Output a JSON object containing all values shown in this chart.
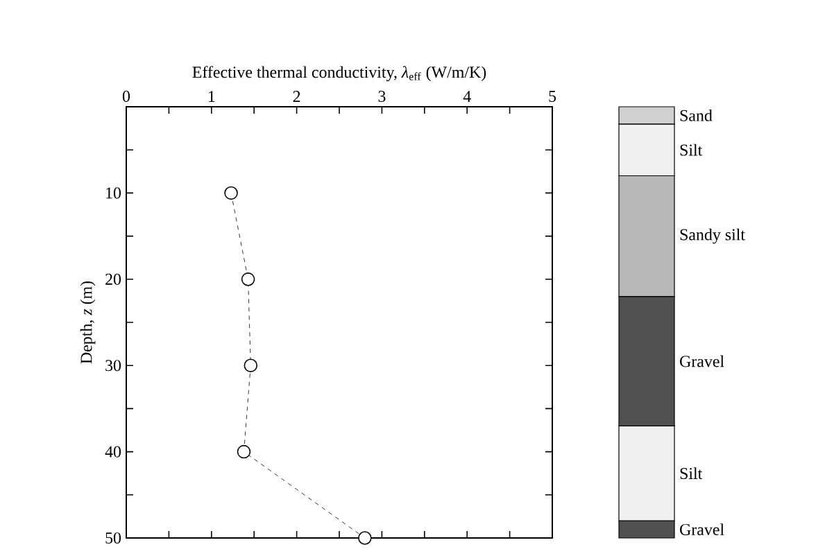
{
  "chart_data": [
    {
      "type": "line",
      "xlabel": "Effective thermal conductivity, *λ*$_{eff}$ (W/m/K)",
      "ylabel": "Depth, *z* (m)",
      "x": [
        1.23,
        1.43,
        1.46,
        1.38,
        2.8
      ],
      "series": [
        {
          "color": "#000000",
          "values": [
            10,
            20,
            30,
            40,
            50
          ]
        }
      ],
      "marker": "circle",
      "line_style": "dashed",
      "grid": false,
      "xlim": [
        0,
        5
      ],
      "ylim": [
        50,
        0
      ],
      "xticks": [
        0,
        {
          "value": 0.5,
          "label": null
        },
        1,
        {
          "value": 1.5,
          "label": null
        },
        2,
        {
          "value": 2.5,
          "label": null
        },
        3,
        {
          "value": 3.5,
          "label": null
        },
        4,
        {
          "value": 4.5,
          "label": null
        },
        5
      ],
      "yticks": [
        {
          "value": 5,
          "label": null
        },
        10,
        {
          "value": 15,
          "label": null
        },
        20,
        {
          "value": 25,
          "label": null
        },
        30,
        {
          "value": 35,
          "label": null
        },
        40,
        {
          "value": 45,
          "label": null
        },
        50
      ]
    },
    {
      "type": "bar",
      "stacked": true,
      "categories": [
        null
      ],
      "ylim": [
        50,
        0
      ],
      "tick_labels": false,
      "series": [
        {
          "name": "Sand",
          "color": "#d0d0d0",
          "values": [
            2
          ]
        },
        {
          "name": "Silt",
          "color": "#f0f0f0",
          "values": [
            6
          ]
        },
        {
          "name": "Sandy silt",
          "color": "#b8b8b8",
          "values": [
            14
          ]
        },
        {
          "name": "Gravel",
          "color": "#505050",
          "values": [
            15
          ]
        },
        {
          "name": "Silt",
          "color": "#f0f0f0",
          "values": [
            11
          ]
        },
        {
          "name": "Gravel",
          "color": "#505050",
          "values": [
            2
          ]
        }
      ]
    }
  ]
}
